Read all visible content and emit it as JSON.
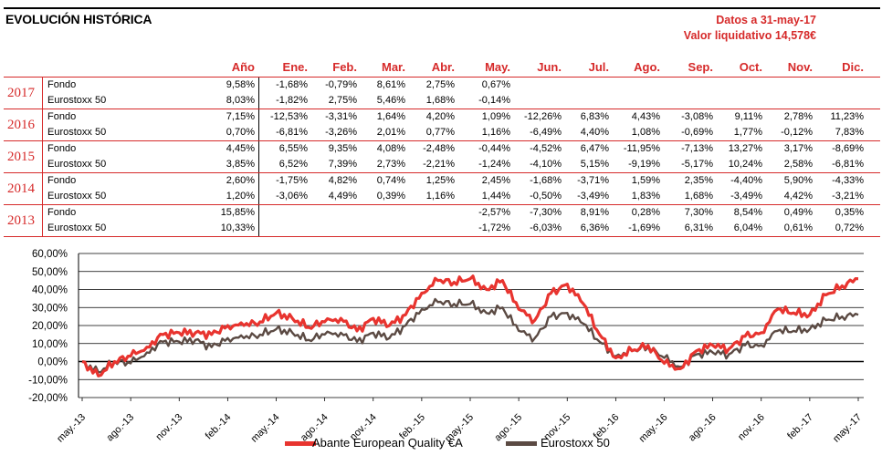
{
  "header": {
    "title": "EVOLUCIÓN HISTÓRICA",
    "date_line": "Datos a 31-may-17",
    "nav_line": "Valor liquidativo 14,578€"
  },
  "table": {
    "columns": [
      "Año",
      "Ene.",
      "Feb.",
      "Mar.",
      "Abr.",
      "May.",
      "Jun.",
      "Jul.",
      "Ago.",
      "Sep.",
      "Oct.",
      "Nov.",
      "Dic."
    ],
    "groups": [
      {
        "year": "2017",
        "rows": [
          {
            "label": "Fondo",
            "values": [
              "9,58%",
              "-1,68%",
              "-0,79%",
              "8,61%",
              "2,75%",
              "0,67%",
              "",
              "",
              "",
              "",
              "",
              "",
              ""
            ]
          },
          {
            "label": "Eurostoxx 50",
            "values": [
              "8,03%",
              "-1,82%",
              "2,75%",
              "5,46%",
              "1,68%",
              "-0,14%",
              "",
              "",
              "",
              "",
              "",
              "",
              ""
            ]
          }
        ]
      },
      {
        "year": "2016",
        "rows": [
          {
            "label": "Fondo",
            "values": [
              "7,15%",
              "-12,53%",
              "-3,31%",
              "1,64%",
              "4,20%",
              "1,09%",
              "-12,26%",
              "6,83%",
              "4,43%",
              "-3,08%",
              "9,11%",
              "2,78%",
              "11,23%"
            ]
          },
          {
            "label": "Eurostoxx 50",
            "values": [
              "0,70%",
              "-6,81%",
              "-3,26%",
              "2,01%",
              "0,77%",
              "1,16%",
              "-6,49%",
              "4,40%",
              "1,08%",
              "-0,69%",
              "1,77%",
              "-0,12%",
              "7,83%"
            ]
          }
        ]
      },
      {
        "year": "2015",
        "rows": [
          {
            "label": "Fondo",
            "values": [
              "4,45%",
              "6,55%",
              "9,35%",
              "4,08%",
              "-2,48%",
              "-0,44%",
              "-4,52%",
              "6,47%",
              "-11,95%",
              "-7,13%",
              "13,27%",
              "3,17%",
              "-8,69%"
            ]
          },
          {
            "label": "Eurostoxx 50",
            "values": [
              "3,85%",
              "6,52%",
              "7,39%",
              "2,73%",
              "-2,21%",
              "-1,24%",
              "-4,10%",
              "5,15%",
              "-9,19%",
              "-5,17%",
              "10,24%",
              "2,58%",
              "-6,81%"
            ]
          }
        ]
      },
      {
        "year": "2014",
        "rows": [
          {
            "label": "Fondo",
            "values": [
              "2,60%",
              "-1,75%",
              "4,82%",
              "0,74%",
              "1,25%",
              "2,45%",
              "-1,68%",
              "-3,71%",
              "1,59%",
              "2,35%",
              "-4,40%",
              "5,90%",
              "-4,33%"
            ]
          },
          {
            "label": "Eurostoxx 50",
            "values": [
              "1,20%",
              "-3,06%",
              "4,49%",
              "0,39%",
              "1,16%",
              "1,44%",
              "-0,50%",
              "-3,49%",
              "1,83%",
              "1,68%",
              "-3,49%",
              "4,42%",
              "-3,21%"
            ]
          }
        ]
      },
      {
        "year": "2013",
        "rows": [
          {
            "label": "Fondo",
            "values": [
              "15,85%",
              "",
              "",
              "",
              "",
              "-2,57%",
              "-7,30%",
              "8,91%",
              "0,28%",
              "7,30%",
              "8,54%",
              "0,49%",
              "0,35%"
            ]
          },
          {
            "label": "Eurostoxx 50",
            "values": [
              "10,33%",
              "",
              "",
              "",
              "",
              "-1,72%",
              "-6,03%",
              "6,36%",
              "-1,69%",
              "6,31%",
              "6,04%",
              "0,61%",
              "0,72%"
            ]
          }
        ]
      }
    ]
  },
  "chart_data": {
    "type": "line",
    "title": "",
    "xlabel": "",
    "ylabel": "",
    "ylim": [
      -20,
      60
    ],
    "y_ticks": [
      "-20,00%",
      "-10,00%",
      "0,00%",
      "10,00%",
      "20,00%",
      "30,00%",
      "40,00%",
      "50,00%",
      "60,00%"
    ],
    "y_tick_values": [
      -20,
      -10,
      0,
      10,
      20,
      30,
      40,
      50,
      60
    ],
    "x_tick_labels": [
      "may.-13",
      "ago.-13",
      "nov.-13",
      "feb.-14",
      "may.-14",
      "ago.-14",
      "nov.-14",
      "feb.-15",
      "may.-15",
      "ago.-15",
      "nov.-15",
      "feb.-16",
      "may.-16",
      "ago.-16",
      "nov.-16",
      "feb.-17",
      "may.-17"
    ],
    "grid": true,
    "legend_position": "bottom",
    "x": [
      "may.-13",
      "jun.-13",
      "jul.-13",
      "ago.-13",
      "sep.-13",
      "oct.-13",
      "nov.-13",
      "dic.-13",
      "ene.-14",
      "feb.-14",
      "mar.-14",
      "abr.-14",
      "may.-14",
      "jun.-14",
      "jul.-14",
      "ago.-14",
      "sep.-14",
      "oct.-14",
      "nov.-14",
      "dic.-14",
      "ene.-15",
      "feb.-15",
      "mar.-15",
      "abr.-15",
      "may.-15",
      "jun.-15",
      "jul.-15",
      "ago.-15",
      "sep.-15",
      "oct.-15",
      "nov.-15",
      "dic.-15",
      "ene.-16",
      "feb.-16",
      "mar.-16",
      "abr.-16",
      "may.-16",
      "jun.-16",
      "jul.-16",
      "ago.-16",
      "sep.-16",
      "oct.-16",
      "nov.-16",
      "dic.-16",
      "ene.-17",
      "feb.-17",
      "mar.-17",
      "abr.-17",
      "may.-17"
    ],
    "series": [
      {
        "name": "Abante European Quality €A",
        "color": "#e8342f",
        "values": [
          0,
          -8,
          0,
          3,
          8,
          15,
          16,
          16,
          15,
          20,
          20,
          22,
          27,
          24,
          19,
          22,
          24,
          17,
          24,
          20,
          26,
          38,
          45,
          44,
          46,
          40,
          45,
          29,
          23,
          38,
          43,
          32,
          15,
          2,
          6,
          9,
          -1,
          -4,
          6,
          9,
          7,
          14,
          16,
          29,
          27,
          26,
          37,
          42,
          46
        ]
      },
      {
        "name": "Eurostoxx 50",
        "color": "#5b4a43",
        "values": [
          0,
          -6,
          0,
          -1,
          5,
          11,
          11,
          12,
          8,
          13,
          13,
          15,
          18,
          16,
          12,
          15,
          16,
          11,
          16,
          13,
          20,
          29,
          33,
          32,
          32,
          27,
          30,
          17,
          13,
          25,
          27,
          21,
          11,
          3,
          6,
          8,
          2,
          -3,
          4,
          5,
          4,
          9,
          9,
          17,
          17,
          18,
          23,
          25,
          26
        ]
      }
    ]
  }
}
